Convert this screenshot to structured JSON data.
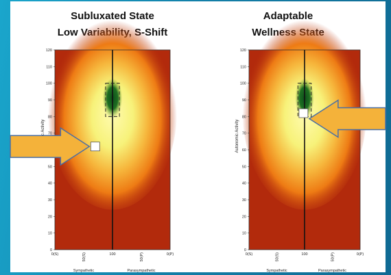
{
  "chart_data": [
    {
      "type": "heatmap",
      "title": "Subluxated State",
      "subtitle": "Low Variability, S-Shift",
      "ylabel": "Autonomic Activity",
      "ylim": [
        0,
        120
      ],
      "yticks": [
        "0",
        "10",
        "20",
        "30",
        "40",
        "50",
        "60",
        "70",
        "80",
        "90",
        "100",
        "110",
        "120"
      ],
      "xticks": [
        "0(S)",
        "50(S)",
        "100",
        "50(P)",
        "0(P)"
      ],
      "xlabels": [
        "Sympathetic",
        "Parasympathetic"
      ],
      "target_zone": {
        "x": [
          88,
          112
        ],
        "y": [
          80,
          100
        ]
      },
      "marker": {
        "x": 70,
        "y": 62
      },
      "arrow_direction": "right",
      "colors": {
        "outer": "#b22a0c",
        "orange": "#f07f10",
        "yellow": "#f7f27a",
        "green": "#0f5a1f",
        "marker": "#ffffff",
        "arrow": "#f4b23a"
      }
    },
    {
      "type": "heatmap",
      "title": "Adaptable",
      "subtitle": "Wellness State",
      "ylabel": "Autonomic Activity",
      "ylim": [
        0,
        120
      ],
      "yticks": [
        "0",
        "10",
        "20",
        "30",
        "40",
        "50",
        "60",
        "70",
        "80",
        "90",
        "100",
        "110",
        "120"
      ],
      "xticks": [
        "0(S)",
        "50(S)",
        "100",
        "50(P)",
        "0(P)"
      ],
      "xlabels": [
        "Sympathetic",
        "Parasympathetic"
      ],
      "target_zone": {
        "x": [
          88,
          112
        ],
        "y": [
          80,
          100
        ]
      },
      "marker": {
        "x": 98,
        "y": 82
      },
      "arrow_direction": "left",
      "colors": {
        "outer": "#b22a0c",
        "orange": "#f07f10",
        "yellow": "#f7f27a",
        "green": "#0f5a1f",
        "marker": "#ffffff",
        "arrow": "#f4b23a"
      }
    }
  ]
}
